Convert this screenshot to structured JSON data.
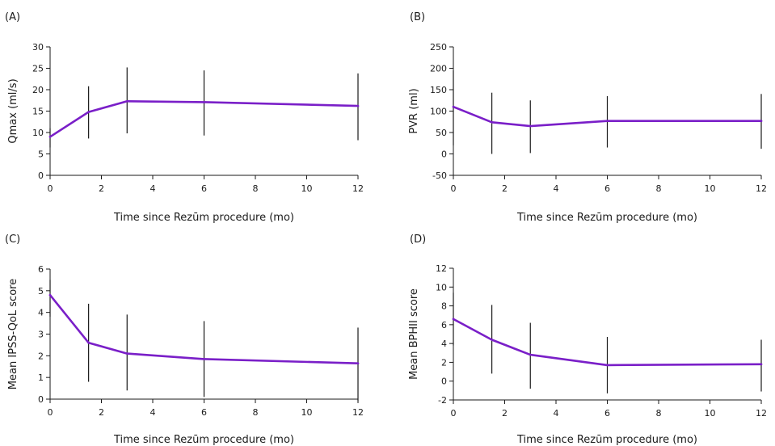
{
  "chart_data": [
    {
      "type": "line",
      "panel_label": "(A)",
      "xlabel": "Time since Rezūm procedure (mo)",
      "ylabel": "Qmax (ml/s)",
      "xlim": [
        0,
        12
      ],
      "ylim": [
        0,
        30
      ],
      "xticks": [
        0,
        2,
        4,
        6,
        8,
        10,
        12
      ],
      "yticks": [
        0,
        5,
        10,
        15,
        20,
        25,
        30
      ],
      "series_color": "#7a1fc8",
      "points": [
        {
          "x": 0,
          "y": 9.0,
          "lo": 6.5,
          "hi": 11.0
        },
        {
          "x": 1.5,
          "y": 14.8,
          "lo": 8.6,
          "hi": 20.8
        },
        {
          "x": 3,
          "y": 17.3,
          "lo": 9.8,
          "hi": 25.2
        },
        {
          "x": 6,
          "y": 17.1,
          "lo": 9.3,
          "hi": 24.5
        },
        {
          "x": 12,
          "y": 16.2,
          "lo": 8.2,
          "hi": 23.8
        }
      ]
    },
    {
      "type": "line",
      "panel_label": "(B)",
      "xlabel": "Time since Rezūm procedure (mo)",
      "ylabel": "PVR (ml)",
      "xlim": [
        0,
        12
      ],
      "ylim": [
        -50,
        250
      ],
      "xticks": [
        0,
        2,
        4,
        6,
        8,
        10,
        12
      ],
      "yticks": [
        -50,
        0,
        50,
        100,
        150,
        200,
        250
      ],
      "series_color": "#7a1fc8",
      "points": [
        {
          "x": 0,
          "y": 110,
          "lo": 20,
          "hi": 195
        },
        {
          "x": 1.5,
          "y": 74,
          "lo": 0,
          "hi": 143
        },
        {
          "x": 3,
          "y": 65,
          "lo": 2,
          "hi": 125
        },
        {
          "x": 6,
          "y": 77,
          "lo": 15,
          "hi": 135
        },
        {
          "x": 12,
          "y": 77,
          "lo": 12,
          "hi": 140
        }
      ]
    },
    {
      "type": "line",
      "panel_label": "(C)",
      "xlabel": "Time since Rezūm procedure (mo)",
      "ylabel": "Mean IPSS-QoL score",
      "xlim": [
        0,
        12
      ],
      "ylim": [
        0,
        6
      ],
      "xticks": [
        0,
        2,
        4,
        6,
        8,
        10,
        12
      ],
      "yticks": [
        0,
        1,
        2,
        3,
        4,
        5,
        6
      ],
      "series_color": "#7a1fc8",
      "points": [
        {
          "x": 0,
          "y": 4.8,
          "lo": 3.8,
          "hi": 5.5
        },
        {
          "x": 1.5,
          "y": 2.6,
          "lo": 0.8,
          "hi": 4.4
        },
        {
          "x": 3,
          "y": 2.1,
          "lo": 0.4,
          "hi": 3.9
        },
        {
          "x": 6,
          "y": 1.85,
          "lo": 0.1,
          "hi": 3.6
        },
        {
          "x": 12,
          "y": 1.65,
          "lo": -0.1,
          "hi": 3.3
        }
      ]
    },
    {
      "type": "line",
      "panel_label": "(D)",
      "xlabel": "Time since Rezūm procedure (mo)",
      "ylabel": "Mean BPHII score",
      "xlim": [
        0,
        12
      ],
      "ylim": [
        -2,
        12
      ],
      "xticks": [
        0,
        2,
        4,
        6,
        8,
        10,
        12
      ],
      "yticks": [
        -2,
        0,
        2,
        4,
        6,
        8,
        10,
        12
      ],
      "series_color": "#7a1fc8",
      "points": [
        {
          "x": 0,
          "y": 6.6,
          "lo": 3.8,
          "hi": 9.4
        },
        {
          "x": 1.5,
          "y": 4.4,
          "lo": 0.8,
          "hi": 8.1
        },
        {
          "x": 3,
          "y": 2.8,
          "lo": -0.8,
          "hi": 6.2
        },
        {
          "x": 6,
          "y": 1.7,
          "lo": -1.3,
          "hi": 4.7
        },
        {
          "x": 12,
          "y": 1.8,
          "lo": -1.1,
          "hi": 4.4
        }
      ]
    }
  ]
}
